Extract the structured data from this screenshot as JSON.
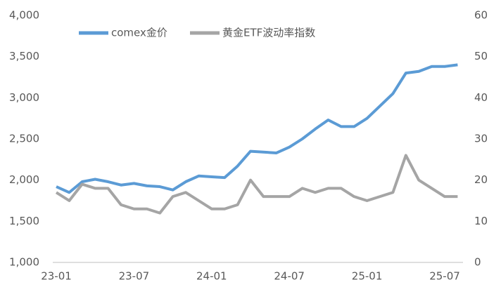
{
  "chart_data": {
    "type": "line",
    "x": [
      "23-01",
      "23-02",
      "23-03",
      "23-04",
      "23-05",
      "23-06",
      "23-07",
      "23-08",
      "23-09",
      "23-10",
      "23-11",
      "23-12",
      "24-01",
      "24-02",
      "24-03",
      "24-04",
      "24-05",
      "24-06",
      "24-07",
      "24-08",
      "24-09",
      "24-10",
      "24-11",
      "24-12",
      "25-01",
      "25-02",
      "25-03",
      "25-04",
      "25-05",
      "25-06",
      "25-07",
      "25-08"
    ],
    "xticks": [
      "23-01",
      "23-07",
      "24-01",
      "24-07",
      "25-01",
      "25-07"
    ],
    "series": [
      {
        "name": "comex金价",
        "color": "#5b9bd5",
        "values": [
          1920,
          1850,
          1980,
          2010,
          1980,
          1940,
          1960,
          1930,
          1920,
          1880,
          1980,
          2050,
          2040,
          2030,
          2170,
          2350,
          2340,
          2330,
          2400,
          2500,
          2620,
          2730,
          2650,
          2650,
          2750,
          2900,
          3050,
          3300,
          3320,
          3380,
          3380,
          3400
        ]
      },
      {
        "name": "黄金ETF波动率指数",
        "color": "#a5a5a5",
        "axis": "y2",
        "values": [
          17,
          15,
          19,
          18,
          18,
          14,
          13,
          13,
          12,
          16,
          17,
          15,
          13,
          13,
          14,
          20,
          16,
          16,
          16,
          18,
          17,
          18,
          18,
          16,
          15,
          16,
          17,
          26,
          20,
          18,
          16,
          16
        ]
      }
    ],
    "ylim": [
      1000,
      4000
    ],
    "yticks": [
      {
        "value": 1000,
        "label": "1,000"
      },
      {
        "value": 1500,
        "label": "1,500"
      },
      {
        "value": 2000,
        "label": "2,000"
      },
      {
        "value": 2500,
        "label": "2,500"
      },
      {
        "value": 3000,
        "label": "3,000"
      },
      {
        "value": 3500,
        "label": "3,500"
      },
      {
        "value": 4000,
        "label": "4,000"
      }
    ],
    "y2lim": [
      0,
      60
    ],
    "y2ticks": [
      0,
      10,
      20,
      30,
      40,
      50,
      60
    ],
    "legend": "top"
  }
}
